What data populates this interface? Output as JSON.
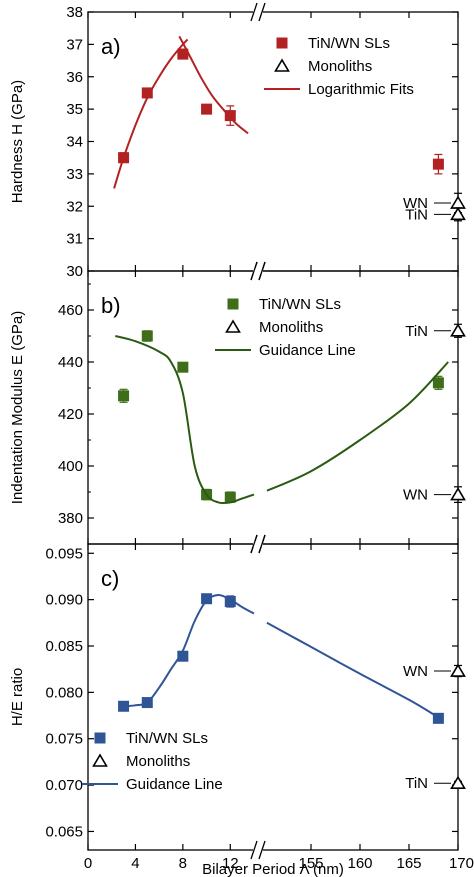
{
  "chart_data": [
    {
      "type": "scatter",
      "panel": "a)",
      "ylabel": "Hardness H (GPa)",
      "ylim": [
        30,
        38
      ],
      "yticks": [
        30,
        31,
        32,
        33,
        34,
        35,
        36,
        37,
        38
      ],
      "series": [
        {
          "name": "TiN/WN SLs",
          "marker": "filled-square",
          "color": "#b22222",
          "x": [
            3,
            5,
            8,
            10,
            12,
            168
          ],
          "y": [
            33.5,
            35.5,
            36.7,
            35.0,
            34.8,
            33.3
          ],
          "err": [
            0.15,
            0.15,
            0.15,
            0.05,
            0.3,
            0.3
          ]
        },
        {
          "name": "Monoliths",
          "marker": "open-triangle",
          "color": "#000000",
          "x": [
            170,
            170
          ],
          "y": [
            32.1,
            31.75
          ],
          "err": [
            0.3,
            0.2
          ],
          "labels": [
            "WN",
            "TiN"
          ]
        },
        {
          "name": "Logarithmic Fits",
          "kind": "line",
          "color": "#b22222",
          "segments": [
            {
              "x": [
                2.2,
                3,
                4,
                5,
                6,
                7,
                8,
                8.4
              ],
              "y": [
                32.55,
                33.5,
                34.5,
                35.35,
                36.0,
                36.55,
                37.0,
                37.15
              ]
            },
            {
              "x": [
                7.7,
                8.5,
                9.5,
                10.5,
                11.5,
                12.5,
                13.5
              ],
              "y": [
                37.25,
                36.7,
                36.0,
                35.4,
                34.95,
                34.55,
                34.25
              ]
            }
          ]
        }
      ]
    },
    {
      "type": "scatter",
      "panel": "b)",
      "ylabel": "Indentation Modulus E (GPa)",
      "ylim": [
        370,
        475
      ],
      "yticks": [
        380,
        400,
        420,
        440,
        460
      ],
      "series": [
        {
          "name": "TiN/WN SLs",
          "marker": "filled-square",
          "color": "#3f6e1b",
          "x": [
            3,
            5,
            8,
            10,
            12,
            168
          ],
          "y": [
            427,
            450,
            438,
            389,
            388,
            432
          ],
          "err": [
            2.5,
            2,
            1,
            2,
            2,
            2.5
          ]
        },
        {
          "name": "Monoliths",
          "marker": "open-triangle",
          "color": "#000000",
          "x": [
            170,
            170
          ],
          "y": [
            452,
            389
          ],
          "err": [
            2.5,
            3
          ],
          "labels": [
            "TiN",
            "WN"
          ]
        },
        {
          "name": "Guidance Line",
          "kind": "line",
          "color": "#2b5a12",
          "segments": [
            {
              "x": [
                2.3,
                4,
                6,
                7,
                8,
                9,
                10,
                11,
                12,
                13,
                14
              ],
              "y": [
                450,
                448,
                444,
                440,
                428,
                400,
                389,
                386,
                386,
                387.5,
                389
              ]
            },
            {
              "x": [
                150.5,
                155,
                160,
                165,
                169
              ],
              "y": [
                390.5,
                398,
                410,
                424,
                440
              ]
            }
          ]
        }
      ]
    },
    {
      "type": "scatter",
      "panel": "c)",
      "ylabel": "H/E ratio",
      "xlabel": "Bilayer Period Λ (nm)",
      "ylim": [
        0.063,
        0.096
      ],
      "yticks": [
        0.065,
        0.07,
        0.075,
        0.08,
        0.085,
        0.09,
        0.095
      ],
      "xtick_labels": [
        "0",
        "4",
        "8",
        "12",
        "155",
        "160",
        "165",
        "170"
      ],
      "series": [
        {
          "name": "TiN/WN SLs",
          "marker": "filled-square",
          "color": "#2f5597",
          "x": [
            3,
            5,
            8,
            10,
            12,
            168
          ],
          "y": [
            0.0785,
            0.0789,
            0.0839,
            0.0901,
            0.0898,
            0.0772
          ],
          "err": [
            0.0002,
            0.0002,
            0.0002,
            0.0002,
            0.0006,
            0.0005
          ]
        },
        {
          "name": "Monoliths",
          "marker": "open-triangle",
          "color": "#000000",
          "x": [
            170,
            170
          ],
          "y": [
            0.0823,
            0.0702
          ],
          "err": [
            0.0006,
            0.0002
          ],
          "labels": [
            "WN",
            "TiN"
          ]
        },
        {
          "name": "Guidance Line",
          "kind": "line",
          "color": "#2f5597",
          "segments": [
            {
              "x": [
                3,
                4,
                5,
                6,
                7,
                8,
                9,
                10,
                11,
                12,
                13,
                14
              ],
              "y": [
                0.0785,
                0.0786,
                0.0789,
                0.0805,
                0.0825,
                0.0845,
                0.0877,
                0.0899,
                0.0905,
                0.09,
                0.0892,
                0.0885
              ]
            },
            {
              "x": [
                150.5,
                155,
                160,
                165,
                168
              ],
              "y": [
                0.0875,
                0.0849,
                0.082,
                0.0792,
                0.0773
              ]
            }
          ]
        }
      ]
    }
  ]
}
